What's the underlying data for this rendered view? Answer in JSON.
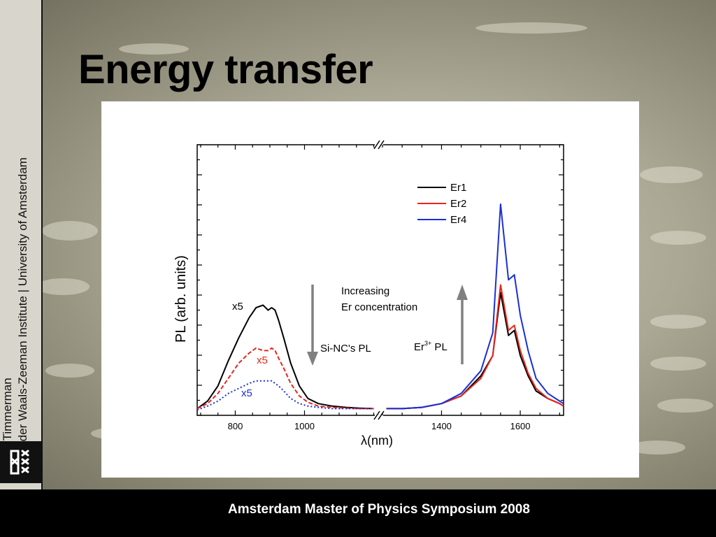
{
  "slide": {
    "title": "Energy transfer",
    "side_line1": "Dolf Timmerman",
    "side_line2": "Van der Waals-Zeeman Institute | University of Amsterdam",
    "footer": "Amsterdam Master of Physics Symposium 2008"
  },
  "chart_data": {
    "type": "line",
    "title": "",
    "xlabel": "λ(nm)",
    "ylabel": "PL (arb. units)",
    "broken_axis": true,
    "segments": [
      {
        "xlim": [
          690,
          1205
        ],
        "ticks": [
          800,
          1000
        ]
      },
      {
        "xlim": [
          1250,
          1710
        ],
        "ticks": [
          1400,
          1600
        ]
      }
    ],
    "ylim": [
      0,
      1
    ],
    "legend_position": "top-right",
    "series": [
      {
        "name": "Er1",
        "color": "#000000",
        "dash": "solid",
        "x": [
          690,
          720,
          750,
          780,
          810,
          840,
          860,
          880,
          895,
          905,
          915,
          925,
          940,
          960,
          985,
          1010,
          1040,
          1080,
          1120,
          1160,
          1200,
          1260,
          1300,
          1350,
          1400,
          1450,
          1500,
          1530,
          1550,
          1570,
          1585,
          1600,
          1620,
          1640,
          1670,
          1700,
          1710
        ],
        "y": [
          0.01,
          0.04,
          0.1,
          0.2,
          0.29,
          0.37,
          0.41,
          0.42,
          0.4,
          0.41,
          0.4,
          0.36,
          0.29,
          0.19,
          0.1,
          0.05,
          0.03,
          0.02,
          0.015,
          0.012,
          0.01,
          0.01,
          0.01,
          0.015,
          0.03,
          0.06,
          0.14,
          0.22,
          0.47,
          0.3,
          0.32,
          0.22,
          0.14,
          0.08,
          0.05,
          0.03,
          0.02
        ]
      },
      {
        "name": "Er2",
        "color": "#e8251d",
        "dash": "dashed",
        "x": [
          690,
          720,
          750,
          780,
          810,
          840,
          860,
          880,
          895,
          905,
          915,
          925,
          940,
          960,
          985,
          1010,
          1040,
          1080,
          1120,
          1160,
          1200,
          1260,
          1300,
          1350,
          1400,
          1450,
          1500,
          1530,
          1550,
          1570,
          1585,
          1600,
          1620,
          1640,
          1670,
          1700,
          1710
        ],
        "y": [
          0.01,
          0.03,
          0.07,
          0.13,
          0.19,
          0.23,
          0.25,
          0.24,
          0.24,
          0.25,
          0.24,
          0.21,
          0.17,
          0.11,
          0.06,
          0.035,
          0.02,
          0.015,
          0.012,
          0.01,
          0.01,
          0.01,
          0.01,
          0.015,
          0.03,
          0.06,
          0.13,
          0.22,
          0.5,
          0.32,
          0.34,
          0.24,
          0.15,
          0.09,
          0.05,
          0.03,
          0.02
        ]
      },
      {
        "name": "Er4",
        "color": "#1a2fd6",
        "dash": "dotted",
        "x": [
          690,
          720,
          750,
          780,
          810,
          840,
          860,
          880,
          895,
          905,
          915,
          925,
          940,
          960,
          985,
          1010,
          1040,
          1080,
          1120,
          1160,
          1200,
          1260,
          1300,
          1350,
          1400,
          1450,
          1500,
          1530,
          1550,
          1570,
          1585,
          1600,
          1620,
          1640,
          1670,
          1700,
          1710
        ],
        "y": [
          0.005,
          0.02,
          0.04,
          0.07,
          0.09,
          0.11,
          0.12,
          0.12,
          0.12,
          0.12,
          0.11,
          0.1,
          0.08,
          0.05,
          0.03,
          0.02,
          0.015,
          0.01,
          0.01,
          0.01,
          0.01,
          0.01,
          0.01,
          0.015,
          0.03,
          0.07,
          0.16,
          0.31,
          0.82,
          0.52,
          0.54,
          0.38,
          0.24,
          0.13,
          0.07,
          0.04,
          0.03
        ]
      }
    ],
    "annotations": {
      "x5_black": "x5",
      "x5_red": "x5",
      "x5_blue": "x5",
      "down_label": "Si-NC's PL",
      "increasing_line1": "Increasing",
      "increasing_line2": "Er concentration",
      "er_label_base": "Er",
      "er_label_sup": "3+",
      "er_label_tail": " PL"
    },
    "tick_labels": [
      "800",
      "1000",
      "1400",
      "1600"
    ]
  }
}
